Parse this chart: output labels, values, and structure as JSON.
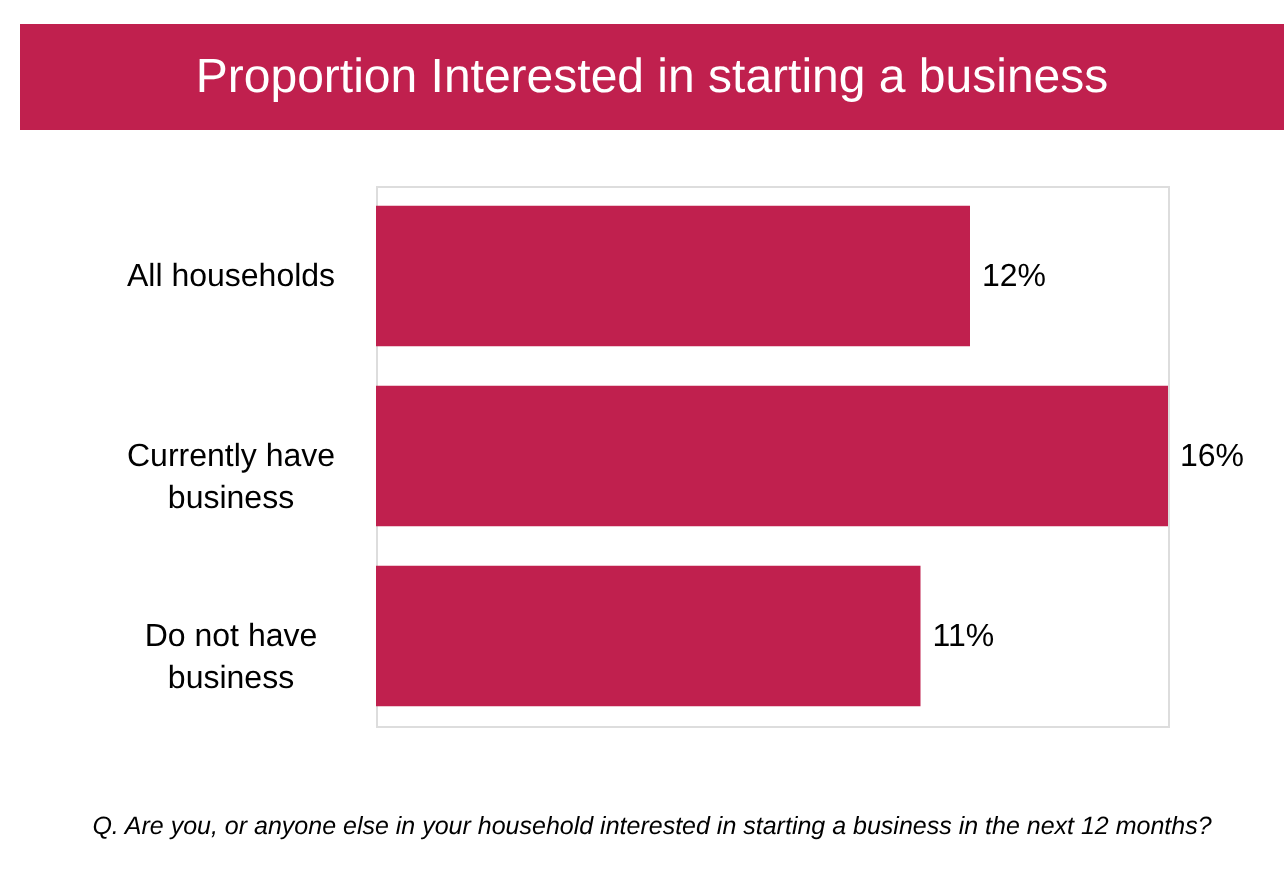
{
  "chart_data": {
    "type": "bar",
    "orientation": "horizontal",
    "title": "Proportion Interested in starting a business",
    "categories": [
      "All households",
      "Currently have business",
      "Do not have business"
    ],
    "values": [
      12,
      16,
      11
    ],
    "color": "#c0204e",
    "value_labels": [
      "12%",
      "16%",
      "11%"
    ],
    "annotations": [
      "Q. Are you, or anyone else in your household interested in starting a business in the next 12 months?"
    ]
  }
}
